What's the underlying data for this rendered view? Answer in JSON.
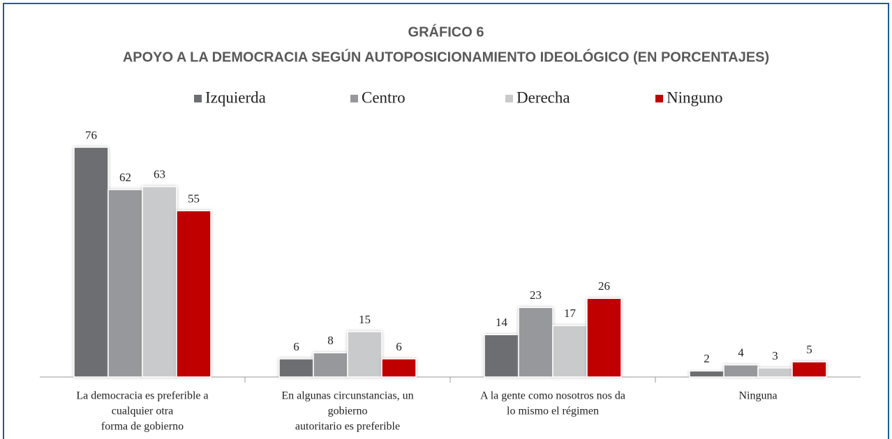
{
  "chart_data": {
    "type": "bar",
    "title": [
      "GRÁFICO 6",
      "APOYO A LA DEMOCRACIA SEGÚN AUTOPOSICIONAMIENTO IDEOLÓGICO (EN PORCENTAJES)"
    ],
    "categories": [
      [
        "La democracia es preferible a",
        "cualquier otra",
        "forma de gobierno"
      ],
      [
        "En algunas circunstancias, un",
        "gobierno",
        "autoritario es preferible"
      ],
      [
        "A la gente como nosotros nos da",
        "lo mismo el régimen"
      ],
      [
        "Ninguna"
      ]
    ],
    "series": [
      {
        "name": "Izquierda",
        "color": "#6d6e72",
        "values": [
          76,
          6,
          14,
          2
        ]
      },
      {
        "name": "Centro",
        "color": "#97989b",
        "values": [
          62,
          8,
          23,
          4
        ]
      },
      {
        "name": "Derecha",
        "color": "#c9cacc",
        "values": [
          63,
          15,
          17,
          3
        ]
      },
      {
        "name": "Ninguno",
        "color": "#c00000",
        "values": [
          55,
          6,
          26,
          5
        ]
      }
    ],
    "ylim": [
      0,
      80
    ],
    "legend": "top"
  }
}
